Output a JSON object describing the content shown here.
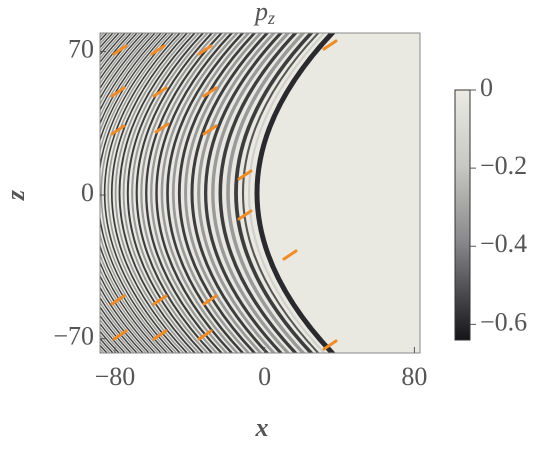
{
  "chart_data": {
    "type": "heatmap",
    "title": "p",
    "title_subscript": "z",
    "x_label": "x",
    "y_label": "z",
    "xlim": [
      -88,
      83
    ],
    "xticks": [
      {
        "value": -80,
        "label": "−80"
      },
      0,
      80
    ],
    "ylim": [
      -77,
      79
    ],
    "yticks": [
      {
        "value": -70,
        "label": "−70"
      },
      0,
      70
    ],
    "colorbar": {
      "lim": [
        -0.64,
        0
      ],
      "ticks": [
        0,
        {
          "value": -0.2,
          "label": "−0.2"
        },
        {
          "value": -0.4,
          "label": "−0.4"
        },
        {
          "value": -0.6,
          "label": "−0.6"
        }
      ]
    }
  }
}
